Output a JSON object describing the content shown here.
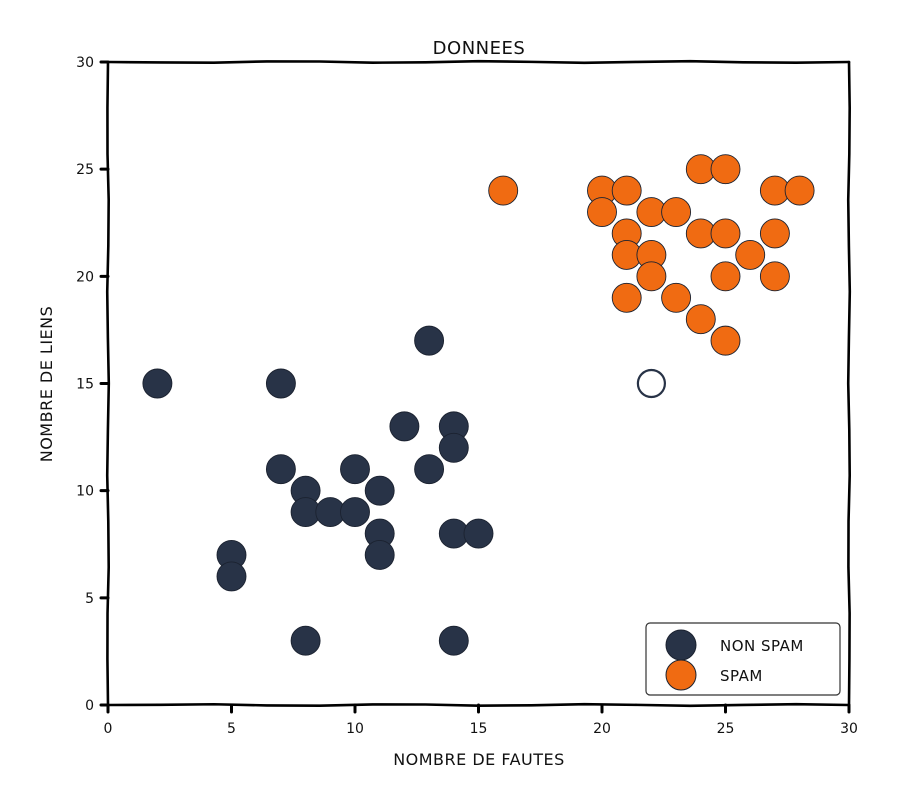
{
  "chart_data": {
    "type": "scatter",
    "title": "DONNEES",
    "xlabel": "NOMBRE DE FAUTES",
    "ylabel": "NOMBRE DE LIENS",
    "xlim": [
      0,
      30
    ],
    "ylim": [
      0,
      30
    ],
    "xticks": [
      0,
      5,
      10,
      15,
      20,
      25,
      30
    ],
    "yticks": [
      0,
      5,
      10,
      15,
      20,
      25,
      30
    ],
    "grid": false,
    "legend_position": "bottom-right",
    "series": [
      {
        "name": "NON SPAM",
        "color": "#283347",
        "points": [
          [
            2,
            15
          ],
          [
            7,
            15
          ],
          [
            13,
            17
          ],
          [
            7,
            11
          ],
          [
            8,
            10
          ],
          [
            8,
            9
          ],
          [
            9,
            9
          ],
          [
            10,
            11
          ],
          [
            10,
            9
          ],
          [
            11,
            10
          ],
          [
            11,
            8
          ],
          [
            11,
            7
          ],
          [
            12,
            13
          ],
          [
            13,
            11
          ],
          [
            14,
            13
          ],
          [
            14,
            12
          ],
          [
            14,
            8
          ],
          [
            15,
            8
          ],
          [
            5,
            7
          ],
          [
            5,
            6
          ],
          [
            8,
            3
          ],
          [
            14,
            3
          ]
        ]
      },
      {
        "name": "SPAM",
        "color": "#f06b12",
        "points": [
          [
            16,
            24
          ],
          [
            20,
            24
          ],
          [
            20,
            23
          ],
          [
            21,
            24
          ],
          [
            21,
            22
          ],
          [
            21,
            21
          ],
          [
            21,
            19
          ],
          [
            22,
            23
          ],
          [
            22,
            21
          ],
          [
            22,
            20
          ],
          [
            23,
            23
          ],
          [
            23,
            19
          ],
          [
            24,
            25
          ],
          [
            24,
            22
          ],
          [
            24,
            18
          ],
          [
            25,
            25
          ],
          [
            25,
            22
          ],
          [
            25,
            20
          ],
          [
            25,
            17
          ],
          [
            26,
            21
          ],
          [
            27,
            24
          ],
          [
            27,
            22
          ],
          [
            27,
            20
          ],
          [
            28,
            24
          ]
        ]
      }
    ],
    "highlight_point": {
      "x": 22,
      "y": 15,
      "edge_color": "#283347",
      "fill_color": "#ffffff"
    }
  }
}
